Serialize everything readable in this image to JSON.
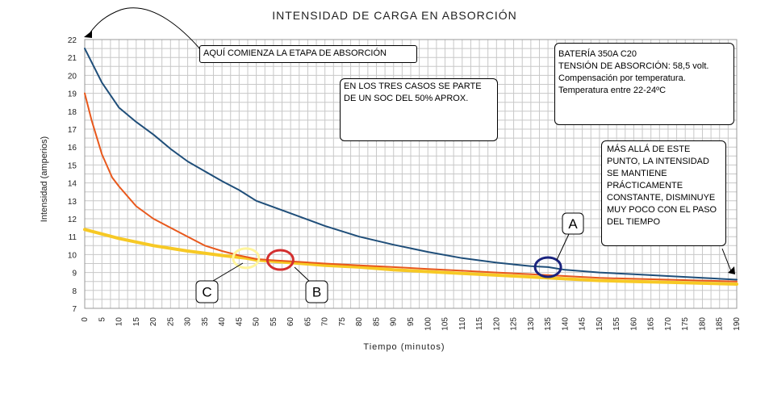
{
  "chart_data": {
    "type": "line",
    "title": "INTENSIDAD DE CARGA EN ABSORCIÓN",
    "xlabel": "Tiempo (minutos)",
    "ylabel": "Intensidad (amperios)",
    "xlim": [
      0,
      190
    ],
    "ylim": [
      7,
      22
    ],
    "xticks": [
      0,
      5,
      10,
      15,
      20,
      25,
      30,
      35,
      40,
      45,
      50,
      55,
      60,
      65,
      70,
      75,
      80,
      85,
      90,
      95,
      100,
      105,
      110,
      115,
      120,
      125,
      130,
      135,
      140,
      145,
      150,
      155,
      160,
      165,
      170,
      175,
      180,
      185,
      190
    ],
    "yticks": [
      7,
      8,
      9,
      10,
      11,
      12,
      13,
      14,
      15,
      16,
      17,
      18,
      19,
      20,
      21,
      22
    ],
    "grid": true,
    "series": [
      {
        "name": "A",
        "color": "#1f4e79",
        "x": [
          0,
          5,
          10,
          15,
          20,
          25,
          30,
          40,
          45,
          50,
          60,
          70,
          80,
          90,
          100,
          110,
          120,
          130,
          135,
          140,
          150,
          160,
          170,
          180,
          190
        ],
        "y": [
          21.5,
          19.6,
          18.2,
          17.4,
          16.7,
          15.9,
          15.2,
          14.1,
          13.6,
          13.0,
          12.3,
          11.6,
          11.0,
          10.55,
          10.15,
          9.8,
          9.55,
          9.35,
          9.3,
          9.15,
          9.0,
          8.9,
          8.8,
          8.7,
          8.6
        ]
      },
      {
        "name": "B",
        "color": "#e8581c",
        "x": [
          0,
          2,
          5,
          8,
          10,
          15,
          20,
          25,
          30,
          35,
          40,
          45,
          50,
          55,
          60,
          70,
          80,
          90,
          100,
          110,
          120,
          130,
          140,
          150,
          160,
          170,
          180,
          190
        ],
        "y": [
          19.0,
          17.5,
          15.6,
          14.3,
          13.8,
          12.7,
          12.0,
          11.5,
          11.0,
          10.5,
          10.2,
          9.95,
          9.75,
          9.68,
          9.62,
          9.5,
          9.4,
          9.3,
          9.2,
          9.1,
          9.0,
          8.9,
          8.8,
          8.7,
          8.65,
          8.6,
          8.55,
          8.5
        ]
      },
      {
        "name": "C",
        "color": "#f7c925",
        "x": [
          0,
          10,
          20,
          30,
          40,
          47,
          50,
          60,
          70,
          80,
          90,
          100,
          110,
          120,
          130,
          140,
          150,
          160,
          170,
          180,
          190
        ],
        "y": [
          11.4,
          10.9,
          10.5,
          10.2,
          9.95,
          9.8,
          9.7,
          9.55,
          9.4,
          9.3,
          9.15,
          9.05,
          8.95,
          8.85,
          8.75,
          8.65,
          8.55,
          8.5,
          8.45,
          8.4,
          8.35
        ]
      }
    ],
    "markers": [
      {
        "label": "A",
        "x": 135,
        "y": 9.3,
        "color": "#1a237e"
      },
      {
        "label": "B",
        "x": 57,
        "y": 9.7,
        "color": "#d32f2f"
      },
      {
        "label": "C",
        "x": 47,
        "y": 9.8,
        "color": "#fff59d"
      }
    ],
    "annotations": {
      "absorption_start": "AQUÍ COMIENZA LA ETAPA DE ABSORCIÓN",
      "soc_note": "EN LOS TRES CASOS SE PARTE DE UN SOC DEL 50% APROX.",
      "battery_info": "BATERÍA 350A C20\nTENSIÓN DE ABSORCIÓN: 58,5 volt.\nCompensación por temperatura.\nTemperatura entre 22-24ºC",
      "constant_note": "MÁS ALLÁ DE ESTE PUNTO, LA INTENSIDAD SE MANTIENE PRÁCTICAMENTE CONSTANTE, DISMINUYE MUY POCO CON EL PASO DEL TIEMPO"
    }
  }
}
